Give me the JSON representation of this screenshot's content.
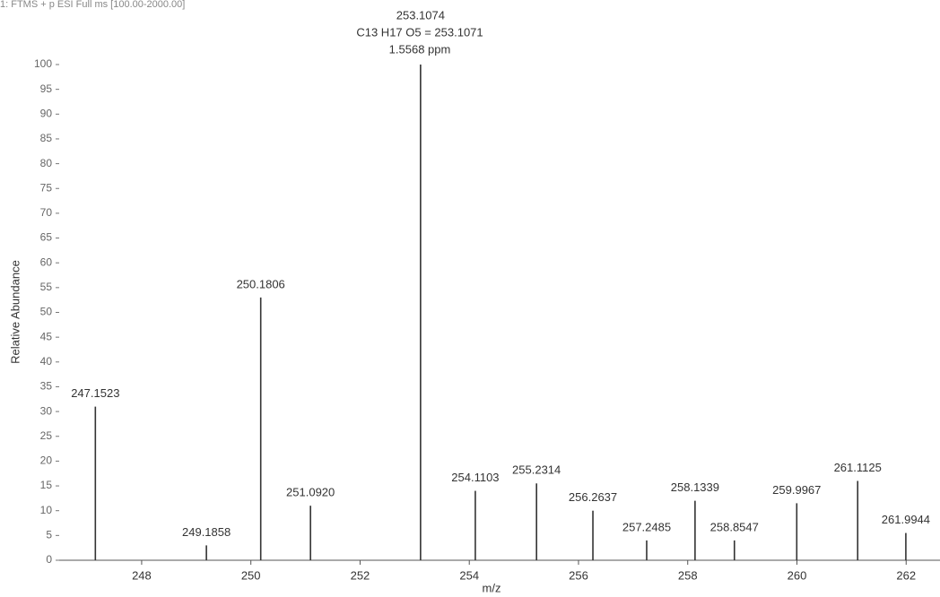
{
  "chart_data": {
    "type": "spectrum",
    "title": "1: FTMS + p ESI Full ms [100.00-2000.00]",
    "annotations": [
      "C13 H17 O5 = 253.1071",
      "1.5568 ppm"
    ],
    "x_label": "m/z",
    "y_label": "Relative Abundance",
    "x": [
      247.1523,
      249.1858,
      250.1806,
      251.092,
      253.1074,
      254.1103,
      255.2314,
      256.2637,
      257.2485,
      258.1339,
      258.8547,
      259.9967,
      261.1125,
      261.9944
    ],
    "x_labels": [
      "247.1523",
      "249.1858",
      "250.1806",
      "251.0920",
      "253.1074",
      "254.1103",
      "255.2314",
      "256.2637",
      "257.2485",
      "258.1339",
      "258.8547",
      "259.9967",
      "261.1125",
      "261.9944"
    ],
    "values": [
      31,
      3,
      53,
      11,
      100,
      14,
      15.5,
      10,
      4,
      12,
      4,
      11.5,
      16,
      5.5
    ],
    "color": "#333333",
    "xlim": [
      246.49,
      262.62
    ],
    "ylim": [
      0,
      100
    ],
    "xticks": [
      248,
      250,
      252,
      254,
      256,
      258,
      260,
      262
    ],
    "yticks": [
      0,
      5,
      10,
      15,
      20,
      25,
      30,
      35,
      40,
      45,
      50,
      55,
      60,
      65,
      70,
      75,
      80,
      85,
      90,
      95,
      100
    ]
  }
}
